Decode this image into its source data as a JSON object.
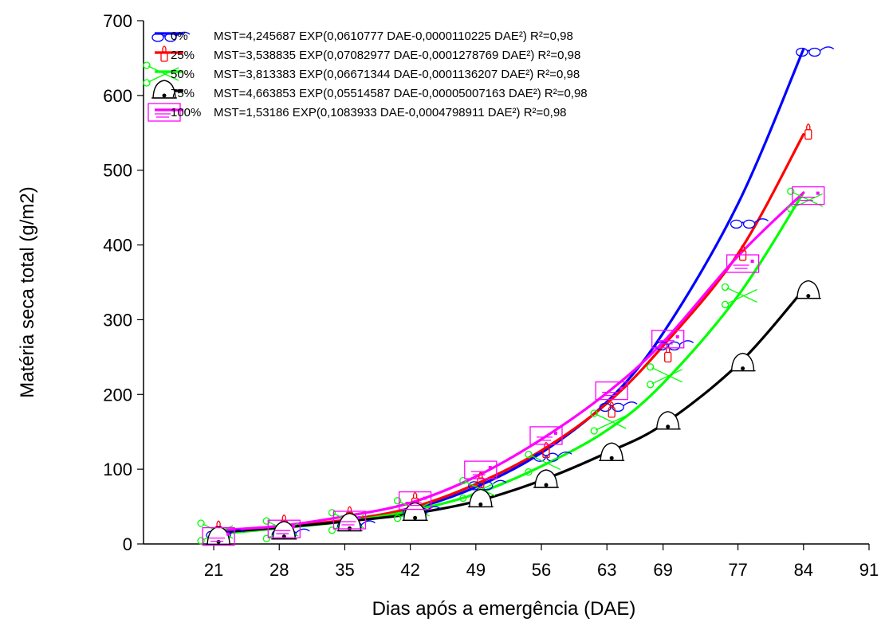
{
  "chart_data": {
    "type": "line",
    "title": "",
    "xlabel": "Dias após a emergência (DAE)",
    "ylabel": "Matéria seca total (g/m2)",
    "x_ticks": [
      21,
      28,
      35,
      42,
      49,
      56,
      63,
      69,
      77,
      84,
      91
    ],
    "y_ticks": [
      0,
      100,
      200,
      300,
      400,
      500,
      600,
      700
    ],
    "xlim": [
      13.5,
      91
    ],
    "ylim": [
      0,
      700
    ],
    "grid": false,
    "legend_position": "top-left",
    "series": [
      {
        "name": "0%",
        "color": "#0000ff",
        "marker": "glasses",
        "equation": "MST=4,245687 EXP(0,0610777 DAE-0,0000110225 DAE²)",
        "r2": "R²=0,98",
        "fit": [
          [
            21,
            16
          ],
          [
            28,
            22
          ],
          [
            35,
            31
          ],
          [
            42,
            46
          ],
          [
            49,
            76
          ],
          [
            56,
            122
          ],
          [
            63,
            190
          ],
          [
            69,
            282
          ],
          [
            77,
            455
          ],
          [
            84,
            662
          ]
        ],
        "observed": [
          [
            21,
            14
          ],
          [
            28,
            15
          ],
          [
            35,
            26
          ],
          [
            42,
            45
          ],
          [
            49,
            80
          ],
          [
            56,
            118
          ],
          [
            63,
            185
          ],
          [
            69,
            267
          ],
          [
            77,
            430
          ],
          [
            84,
            660
          ]
        ]
      },
      {
        "name": "25%",
        "color": "#ff0000",
        "marker": "bottle",
        "equation": "MST=3,538835 EXP(0,07082977 DAE-0,0001278769 DAE²)",
        "r2": "R²=0,98",
        "fit": [
          [
            21,
            14
          ],
          [
            28,
            23
          ],
          [
            35,
            32
          ],
          [
            42,
            48
          ],
          [
            49,
            80
          ],
          [
            56,
            125
          ],
          [
            63,
            188
          ],
          [
            69,
            265
          ],
          [
            77,
            388
          ],
          [
            84,
            548
          ]
        ],
        "observed": [
          [
            21,
            19
          ],
          [
            28,
            27
          ],
          [
            35,
            38
          ],
          [
            42,
            57
          ],
          [
            49,
            84
          ],
          [
            56,
            124
          ],
          [
            63,
            178
          ],
          [
            69,
            252
          ],
          [
            77,
            388
          ],
          [
            84,
            550
          ]
        ]
      },
      {
        "name": "50%",
        "color": "#00ff00",
        "marker": "scissors",
        "equation": "MST=3,813383 EXP(0,06671344 DAE-0,0001136207 DAE²)",
        "r2": "R²=0,98",
        "fit": [
          [
            21,
            13
          ],
          [
            28,
            21
          ],
          [
            35,
            30
          ],
          [
            42,
            44
          ],
          [
            49,
            67
          ],
          [
            56,
            104
          ],
          [
            63,
            152
          ],
          [
            69,
            215
          ],
          [
            77,
            332
          ],
          [
            84,
            470
          ]
        ],
        "observed": [
          [
            21,
            16
          ],
          [
            28,
            19
          ],
          [
            35,
            30
          ],
          [
            42,
            46
          ],
          [
            49,
            73
          ],
          [
            56,
            108
          ],
          [
            63,
            163
          ],
          [
            69,
            225
          ],
          [
            77,
            332
          ],
          [
            84,
            460
          ]
        ]
      },
      {
        "name": "75%",
        "color": "#000000",
        "marker": "bell",
        "equation": "MST=4,663853 EXP(0,05514587 DAE-0,00005007163 DAE²)",
        "r2": "R²=0,98",
        "fit": [
          [
            21,
            15
          ],
          [
            28,
            22
          ],
          [
            35,
            30
          ],
          [
            42,
            40
          ],
          [
            49,
            57
          ],
          [
            56,
            85
          ],
          [
            63,
            122
          ],
          [
            69,
            160
          ],
          [
            77,
            240
          ],
          [
            84,
            340
          ]
        ],
        "observed": [
          [
            21,
            6
          ],
          [
            28,
            13
          ],
          [
            35,
            24
          ],
          [
            42,
            38
          ],
          [
            49,
            56
          ],
          [
            56,
            82
          ],
          [
            63,
            118
          ],
          [
            69,
            160
          ],
          [
            77,
            238
          ],
          [
            84,
            335
          ]
        ]
      },
      {
        "name": "100%",
        "color": "#ff00ff",
        "marker": "square",
        "equation": "MST=1,53186 EXP(0,1083933 DAE-0,0004798911 DAE²)",
        "r2": "R²=0,98",
        "fit": [
          [
            21,
            18
          ],
          [
            28,
            24
          ],
          [
            35,
            37
          ],
          [
            42,
            55
          ],
          [
            49,
            90
          ],
          [
            56,
            140
          ],
          [
            63,
            202
          ],
          [
            69,
            270
          ],
          [
            77,
            385
          ],
          [
            84,
            470
          ]
        ],
        "observed": [
          [
            21,
            10
          ],
          [
            28,
            20
          ],
          [
            35,
            32
          ],
          [
            42,
            58
          ],
          [
            49,
            99
          ],
          [
            56,
            145
          ],
          [
            63,
            205
          ],
          [
            69,
            274
          ],
          [
            77,
            375
          ],
          [
            84,
            466
          ]
        ]
      }
    ]
  }
}
